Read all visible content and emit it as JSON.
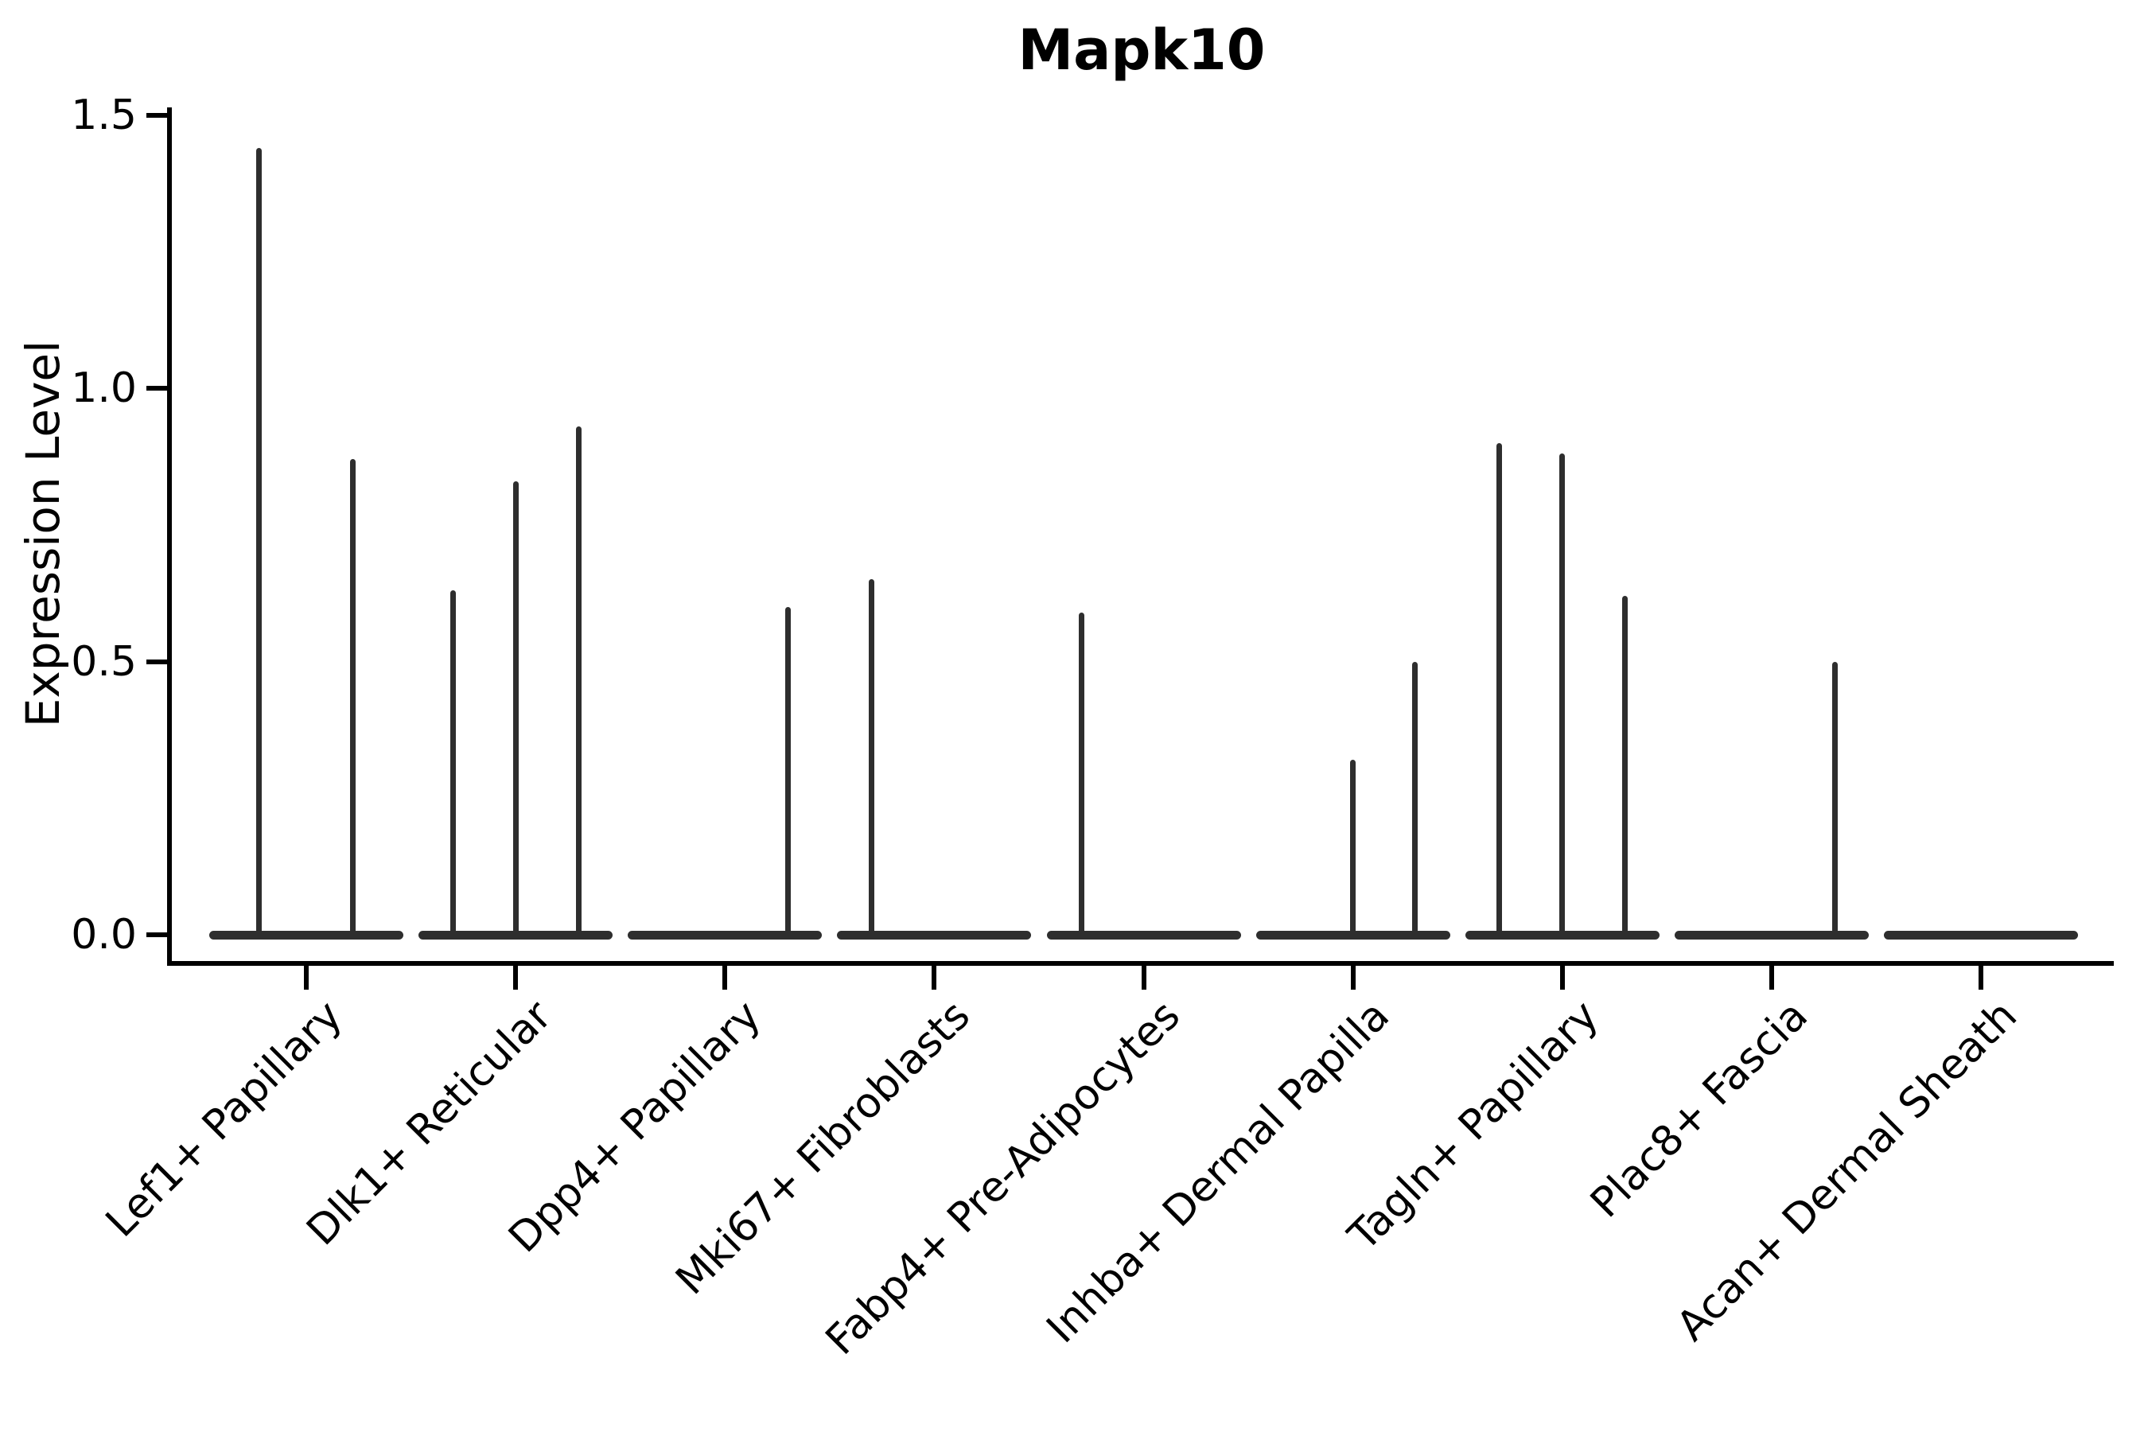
{
  "figure": {
    "title": "Mapk10",
    "background_color": "#ffffff",
    "text_color": "#000000",
    "axis_color": "#000000",
    "violin_color": "#2e2e2e"
  },
  "chart_data": {
    "type": "violin",
    "title": "Mapk10",
    "xlabel": "",
    "ylabel": "Expression Level",
    "ylim": [
      -0.05,
      1.51
    ],
    "yticks": [
      {
        "value": 0.0,
        "label": "0.0"
      },
      {
        "value": 0.5,
        "label": "0.5"
      },
      {
        "value": 1.0,
        "label": "1.0"
      },
      {
        "value": 1.5,
        "label": "1.5"
      }
    ],
    "grid": false,
    "legend": false,
    "categories": [
      "Lef1+ Papillary",
      "Dlk1+ Reticular",
      "Dpp4+ Papillary",
      "Mki67+ Fibroblasts",
      "Fabp4+ Pre-Adipocytes",
      "Inhba+ Dermal Papilla",
      "Tagln+ Papillary",
      "Plac8+ Fascia",
      "Acan+ Dermal Sheath"
    ],
    "violins": [
      {
        "category": "Lef1+ Papillary",
        "baseline_mass": 0.0,
        "spikes": [
          {
            "dx": -60,
            "value": 1.44
          },
          {
            "dx": 58,
            "value": 0.87
          }
        ]
      },
      {
        "category": "Dlk1+ Reticular",
        "baseline_mass": 0.0,
        "spikes": [
          {
            "dx": -79,
            "value": 0.63
          },
          {
            "dx": 0,
            "value": 0.83
          },
          {
            "dx": 79,
            "value": 0.93
          }
        ]
      },
      {
        "category": "Dpp4+ Papillary",
        "baseline_mass": 0.0,
        "spikes": [
          {
            "dx": 79,
            "value": 0.6
          }
        ]
      },
      {
        "category": "Mki67+ Fibroblasts",
        "baseline_mass": 0.0,
        "spikes": [
          {
            "dx": -79,
            "value": 0.65
          }
        ]
      },
      {
        "category": "Fabp4+ Pre-Adipocytes",
        "baseline_mass": 0.0,
        "spikes": [
          {
            "dx": -79,
            "value": 0.59
          }
        ]
      },
      {
        "category": "Inhba+ Dermal Papilla",
        "baseline_mass": 0.0,
        "spikes": [
          {
            "dx": -1,
            "value": 0.32
          },
          {
            "dx": 77,
            "value": 0.5
          }
        ]
      },
      {
        "category": "Tagln+ Papillary",
        "baseline_mass": 0.0,
        "spikes": [
          {
            "dx": -80,
            "value": 0.9
          },
          {
            "dx": -1,
            "value": 0.88
          },
          {
            "dx": 78,
            "value": 0.62
          }
        ]
      },
      {
        "category": "Plac8+ Fascia",
        "baseline_mass": 0.0,
        "spikes": [
          {
            "dx": 79,
            "value": 0.5
          }
        ]
      },
      {
        "category": "Acan+ Dermal Sheath",
        "baseline_mass": 0.0,
        "spikes": []
      }
    ]
  }
}
